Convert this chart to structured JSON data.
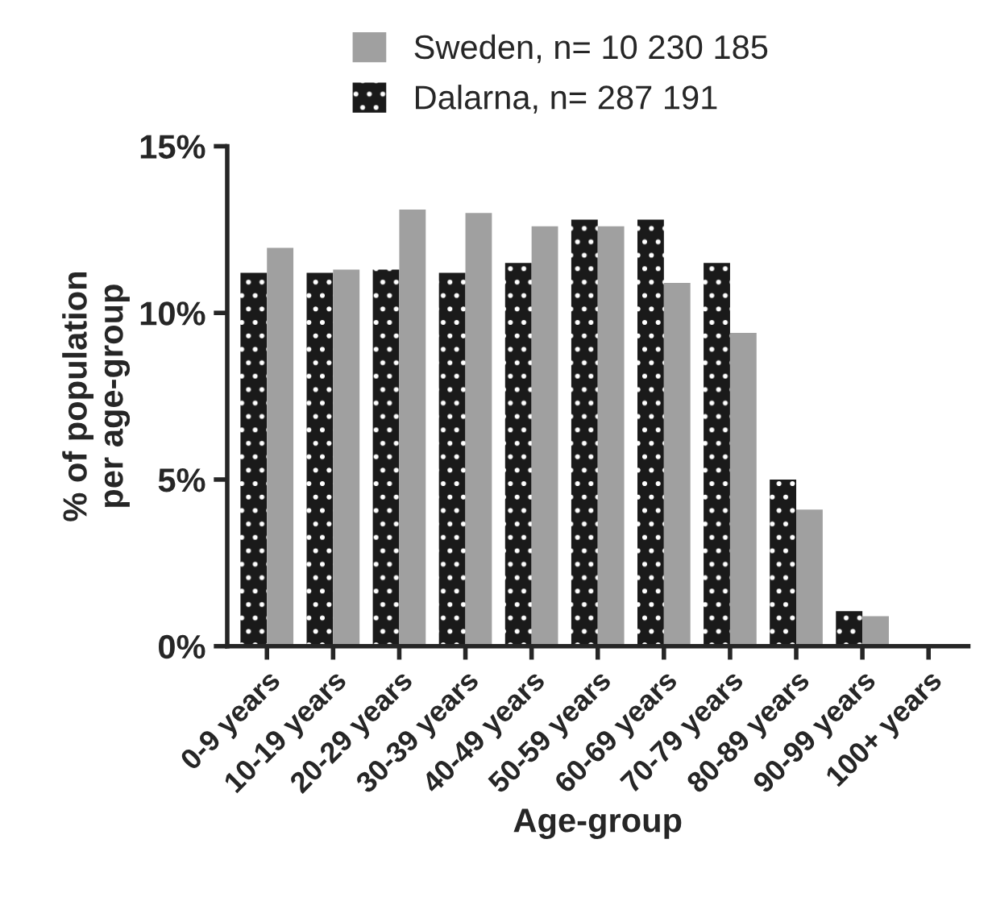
{
  "chart_data": {
    "type": "bar",
    "xlabel": "Age-group",
    "ylabel": "% of population\nper age-group",
    "categories": [
      "0-9 years",
      "10-19 years",
      "20-29 years",
      "30-39 years",
      "40-49 years",
      "50-59 years",
      "60-69 years",
      "70-79 years",
      "80-89 years",
      "90-99 years",
      "100+ years"
    ],
    "series": [
      {
        "name": "Dalarna, n= 287 191",
        "color": "#1a1a1a",
        "values": [
          11.2,
          11.2,
          11.3,
          11.2,
          11.5,
          12.8,
          12.8,
          11.5,
          5.0,
          1.05,
          0.0
        ]
      },
      {
        "name": "Sweden, n= 10 230 185",
        "color": "#a0a0a0",
        "values": [
          11.95,
          11.3,
          13.1,
          13.0,
          12.6,
          12.6,
          10.9,
          9.4,
          4.1,
          0.9,
          0.0
        ]
      }
    ],
    "ylim": [
      0,
      15
    ],
    "yticks": [
      {
        "value": 0,
        "label": "0%"
      },
      {
        "value": 5,
        "label": "5%"
      },
      {
        "value": 10,
        "label": "10%"
      },
      {
        "value": 15,
        "label": "15%"
      }
    ],
    "grid": false,
    "legend": "top"
  }
}
